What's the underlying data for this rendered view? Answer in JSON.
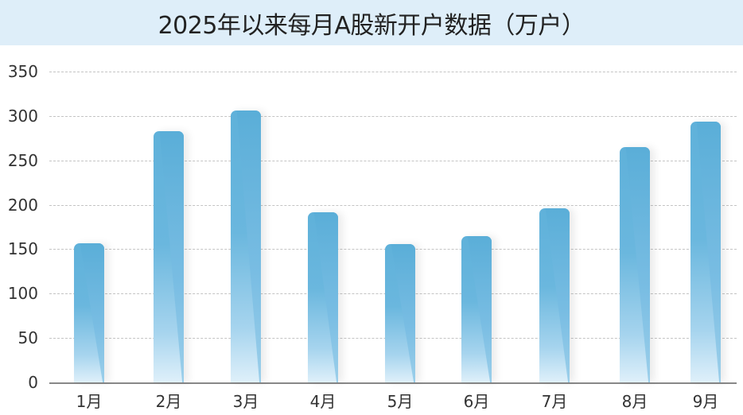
{
  "title": "2025年以来每月A股新开户数据（万户）",
  "colors": {
    "header_bg": "#deeef9",
    "bar": "#5fb1da",
    "grid": "#c4c4c4"
  },
  "chart_data": {
    "type": "bar",
    "title": "2025年以来每月A股新开户数据（万户）",
    "xlabel": "",
    "ylabel": "万户",
    "categories": [
      "1月",
      "2月",
      "3月",
      "4月",
      "5月",
      "6月",
      "7月",
      "8月",
      "9月"
    ],
    "values": [
      157,
      283,
      306,
      192,
      156,
      165,
      196,
      265,
      294
    ],
    "ylim": [
      0,
      350
    ],
    "yticks": [
      0,
      50,
      100,
      150,
      200,
      250,
      300,
      350
    ],
    "grid": true,
    "legend": null
  }
}
